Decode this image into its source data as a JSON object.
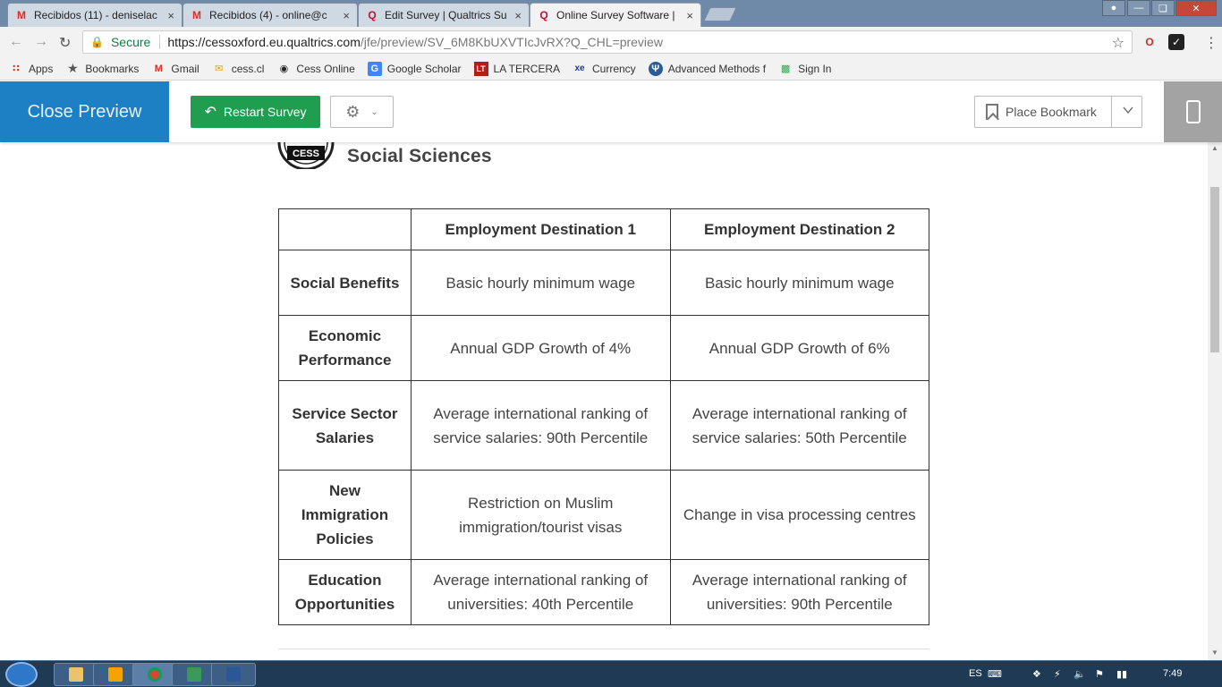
{
  "browser": {
    "tabs": [
      {
        "title": "Recibidos (11) - deniselac",
        "icon": "gmail",
        "active": false
      },
      {
        "title": "Recibidos (4) - online@c",
        "icon": "gmail",
        "active": false
      },
      {
        "title": "Edit Survey | Qualtrics Su",
        "icon": "qualtrics",
        "active": false
      },
      {
        "title": "Online Survey Software |",
        "icon": "qualtrics",
        "active": true
      }
    ],
    "security_label": "Secure",
    "url_host": "https://cessoxford.eu.qualtrics.com",
    "url_path": "/jfe/preview/SV_6M8KbUXVTIcJvRX?Q_CHL=preview",
    "bookmarks": [
      {
        "label": "Apps",
        "icon": "apps-grid-icon"
      },
      {
        "label": "Bookmarks",
        "icon": "star-icon"
      },
      {
        "label": "Gmail",
        "icon": "gmail-icon"
      },
      {
        "label": "cess.cl",
        "icon": "envelope-icon"
      },
      {
        "label": "Cess Online",
        "icon": "cess-icon"
      },
      {
        "label": "Google Scholar",
        "icon": "scholar-icon"
      },
      {
        "label": "LA TERCERA",
        "icon": "latercera-icon"
      },
      {
        "label": "Currency",
        "icon": "xe-icon"
      },
      {
        "label": "Advanced Methods f",
        "icon": "methods-icon"
      },
      {
        "label": "Sign In",
        "icon": "signin-icon"
      }
    ]
  },
  "preview_header": {
    "close_label": "Close Preview",
    "restart_label": "Restart Survey",
    "place_bookmark_label": "Place Bookmark"
  },
  "survey": {
    "logo_badge": "CESS",
    "logo_text": "Social Sciences",
    "table": {
      "headers": [
        "",
        "Employment Destination 1",
        "Employment Destination 2"
      ],
      "rows": [
        {
          "attribute": "Social Benefits",
          "d1": "Basic hourly minimum wage",
          "d2": "Basic hourly minimum wage"
        },
        {
          "attribute": "Economic Performance",
          "d1": "Annual GDP Growth of 4%",
          "d2": "Annual GDP Growth of 6%"
        },
        {
          "attribute": "Service Sector Salaries",
          "d1": "Average international ranking of service salaries: 90th Percentile",
          "d2": "Average international ranking of service salaries: 50th Percentile"
        },
        {
          "attribute": "New Immigration Policies",
          "d1": "Restriction on Muslim immigration/tourist visas",
          "d2": "Change in visa processing centres"
        },
        {
          "attribute": "Education Opportunities",
          "d1": "Average international ranking of universities: 40th Percentile",
          "d2": "Average international ranking of universities: 90th Percentile"
        }
      ]
    }
  },
  "taskbar": {
    "language": "ES",
    "time": "7:49"
  },
  "colors": {
    "close_preview_bg": "#1d7fc4",
    "restart_bg": "#1e9e4e",
    "mobile_toggle_bg": "#a3a3a3"
  }
}
